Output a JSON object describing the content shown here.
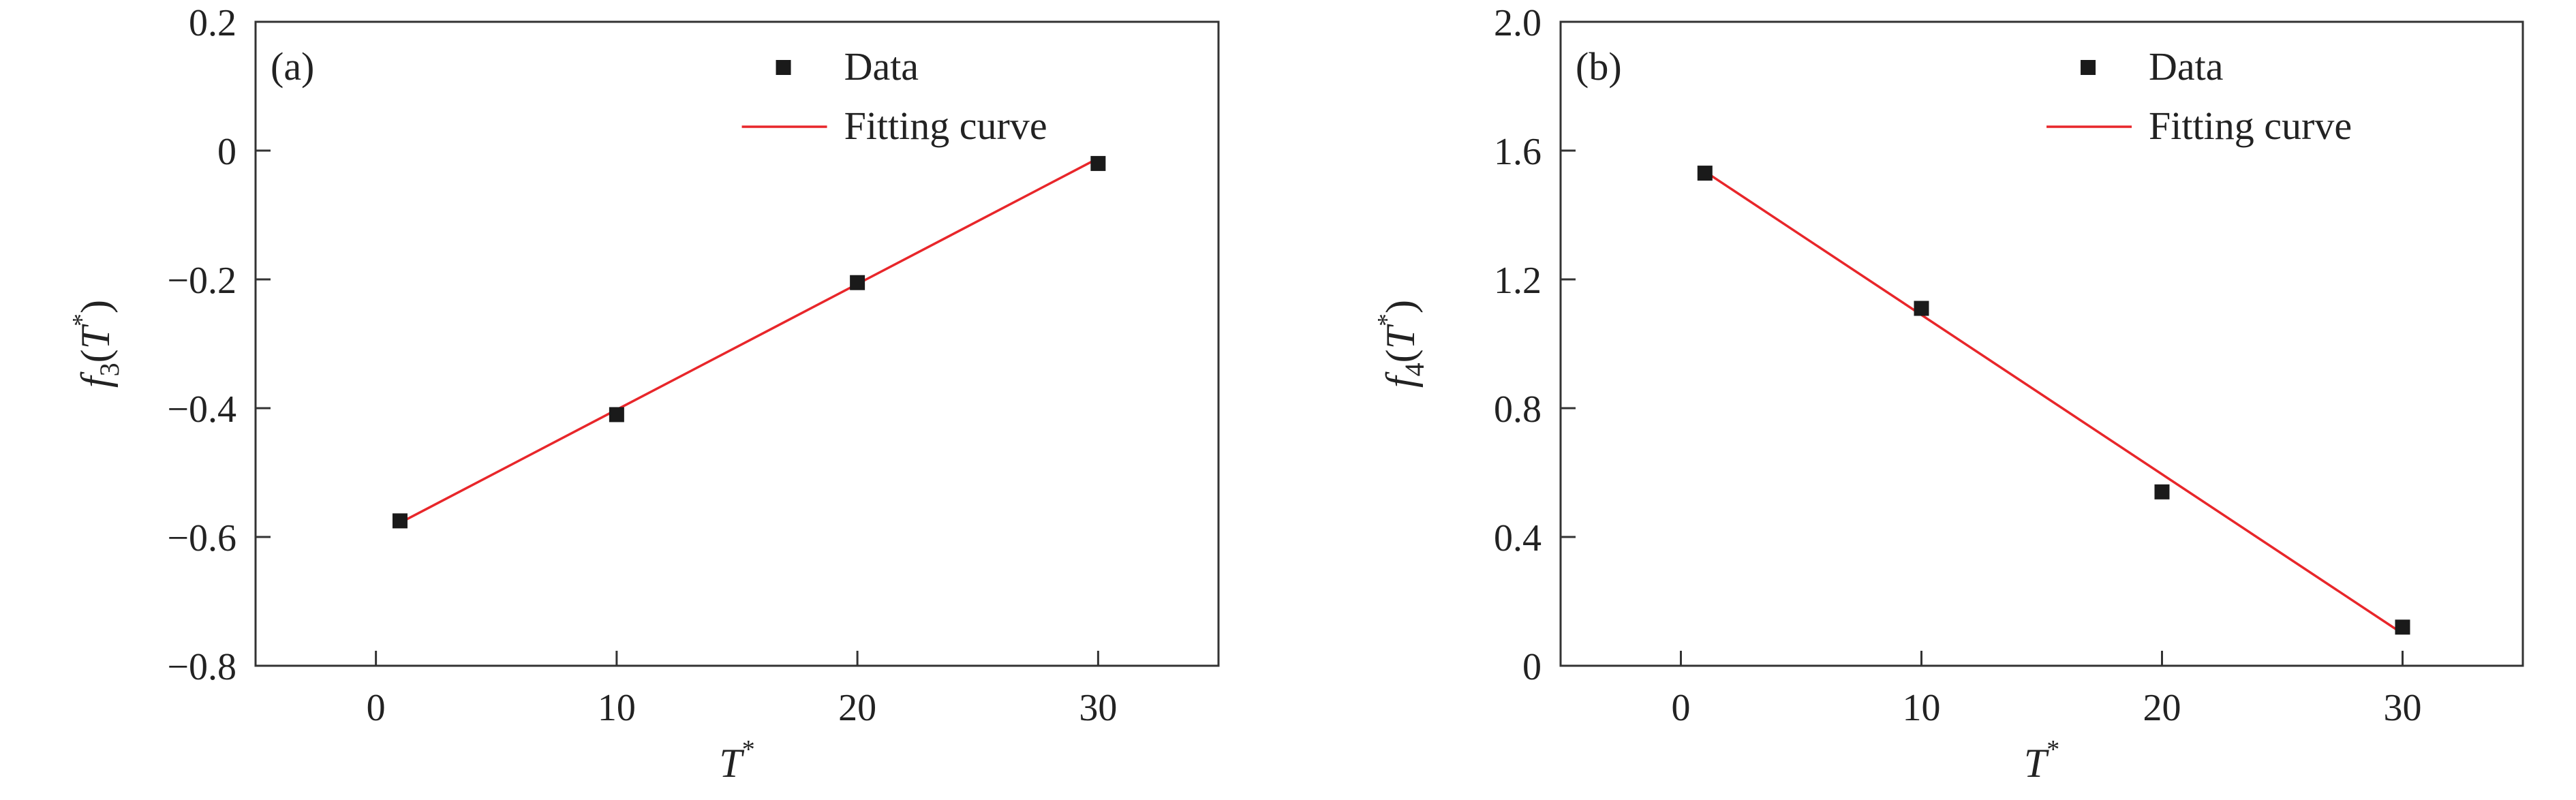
{
  "chart_data": [
    {
      "type": "scatter",
      "panel_label": "(a)",
      "xlabel": {
        "main": "T",
        "sup": "*"
      },
      "ylabel": {
        "f": "f",
        "sub": "3",
        "open": "(",
        "T": "T",
        "sup": "*",
        "close": ")"
      },
      "xlim": [
        -5,
        35
      ],
      "ylim": [
        -0.8,
        0.2
      ],
      "xticks": [
        0,
        10,
        20,
        30
      ],
      "xtick_labels": [
        "0",
        "10",
        "20",
        "30"
      ],
      "yticks": [
        -0.8,
        -0.6,
        -0.4,
        -0.2,
        0,
        0.2
      ],
      "ytick_labels": [
        "−0.8",
        "−0.6",
        "−0.4",
        "−0.2",
        "0",
        "0.2"
      ],
      "legend": {
        "placement": "top-right",
        "entries": [
          "Data",
          "Fitting curve"
        ]
      },
      "grid": false,
      "series": [
        {
          "name": "Data",
          "kind": "markers",
          "color": "#1a1a1a",
          "x": [
            1,
            10,
            20,
            30
          ],
          "y": [
            -0.575,
            -0.41,
            -0.205,
            -0.02
          ]
        },
        {
          "name": "Fitting curve",
          "kind": "line",
          "color": "#e8262a",
          "x": [
            1,
            30
          ],
          "y": [
            -0.578,
            -0.012
          ]
        }
      ]
    },
    {
      "type": "scatter",
      "panel_label": "(b)",
      "xlabel": {
        "main": "T",
        "sup": "*"
      },
      "ylabel": {
        "f": "f",
        "sub": "4",
        "open": "(",
        "T": "T",
        "sup": "*",
        "close": ")"
      },
      "xlim": [
        -5,
        35
      ],
      "ylim": [
        0,
        2.0
      ],
      "xticks": [
        0,
        10,
        20,
        30
      ],
      "xtick_labels": [
        "0",
        "10",
        "20",
        "30"
      ],
      "yticks": [
        0,
        0.4,
        0.8,
        1.2,
        1.6,
        2.0
      ],
      "ytick_labels": [
        "0",
        "0.4",
        "0.8",
        "1.2",
        "1.6",
        "2.0"
      ],
      "legend": {
        "placement": "top-right",
        "entries": [
          "Data",
          "Fitting curve"
        ]
      },
      "grid": false,
      "series": [
        {
          "name": "Data",
          "kind": "markers",
          "color": "#1a1a1a",
          "x": [
            1,
            10,
            20,
            30
          ],
          "y": [
            1.53,
            1.11,
            0.54,
            0.12
          ]
        },
        {
          "name": "Fitting curve",
          "kind": "line",
          "color": "#e8262a",
          "x": [
            1,
            30
          ],
          "y": [
            1.535,
            0.1
          ]
        }
      ]
    }
  ]
}
